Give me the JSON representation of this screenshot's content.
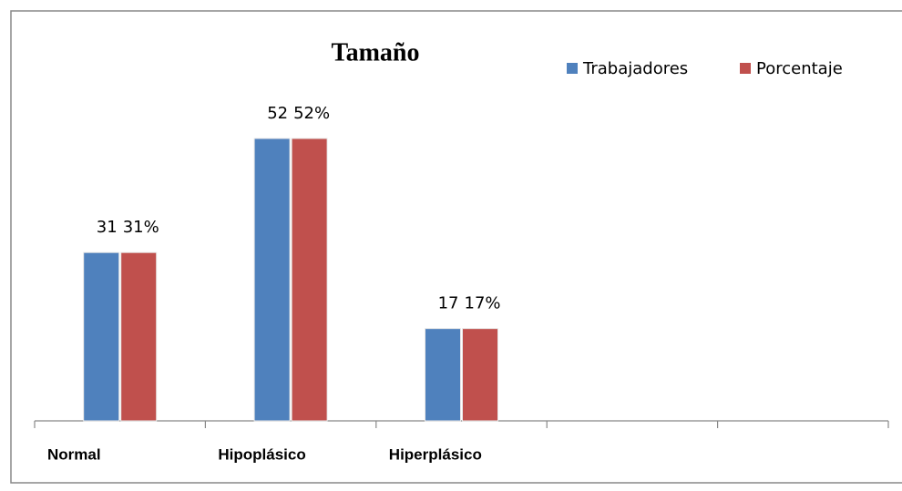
{
  "chart_data": {
    "type": "bar",
    "title": "Tamaño",
    "categories": [
      "Normal",
      "Hipoplásico",
      "Hiperplásico",
      null,
      null
    ],
    "series": [
      {
        "name": "Trabajadores",
        "color": "#4f81bd",
        "values": [
          31,
          52,
          17,
          null,
          null
        ]
      },
      {
        "name": "Porcentaje",
        "color": "#c0504d",
        "values": [
          31,
          52,
          17,
          null,
          null
        ],
        "value_labels": [
          "31%",
          "52%",
          "17%",
          null,
          null
        ]
      }
    ],
    "legend": "top-right"
  }
}
